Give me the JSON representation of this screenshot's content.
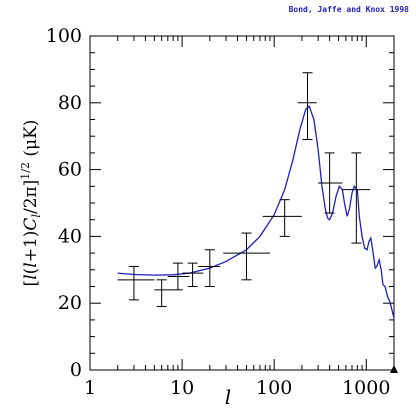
{
  "credit": "Bond, Jaffe and Knox 1998",
  "chart_data": {
    "type": "scatter",
    "xscale": "log",
    "xlim": [
      1,
      2000
    ],
    "ylim": [
      0,
      100
    ],
    "xlabel": "l",
    "ylabel": "[l(l+1)C_l/2π]^{1/2}  (μK)",
    "xticks": [
      1,
      10,
      100,
      1000
    ],
    "xtick_labels": [
      "1",
      "10",
      "100",
      "1000"
    ],
    "yticks": [
      0,
      20,
      40,
      60,
      80,
      100
    ],
    "ytick_labels": [
      "0",
      "20",
      "40",
      "60",
      "80",
      "100"
    ],
    "grid": false,
    "points": [
      {
        "x": 3,
        "y": 27,
        "xlo": 2,
        "xhi": 5,
        "ylo": 21,
        "yhi": 31
      },
      {
        "x": 6,
        "y": 24,
        "xlo": 5,
        "xhi": 8,
        "ylo": 19,
        "yhi": 27
      },
      {
        "x": 9,
        "y": 28,
        "xlo": 7,
        "xhi": 12,
        "ylo": 24,
        "yhi": 32
      },
      {
        "x": 13,
        "y": 29,
        "xlo": 10,
        "xhi": 17,
        "ylo": 25,
        "yhi": 32
      },
      {
        "x": 20,
        "y": 31,
        "xlo": 15,
        "xhi": 26,
        "ylo": 25,
        "yhi": 36
      },
      {
        "x": 50,
        "y": 35,
        "xlo": 28,
        "xhi": 90,
        "ylo": 27,
        "yhi": 41
      },
      {
        "x": 130,
        "y": 46,
        "xlo": 75,
        "xhi": 200,
        "ylo": 40,
        "yhi": 51
      },
      {
        "x": 230,
        "y": 80,
        "xlo": 180,
        "xhi": 290,
        "ylo": 69,
        "yhi": 89
      },
      {
        "x": 400,
        "y": 56,
        "xlo": 300,
        "xhi": 550,
        "ylo": 47,
        "yhi": 65
      },
      {
        "x": 780,
        "y": 54,
        "xlo": 550,
        "xhi": 1100,
        "ylo": 38,
        "yhi": 65
      }
    ],
    "series": [
      {
        "type": "line",
        "color": "#1f1fbf",
        "x": [
          2,
          3,
          5,
          8,
          12,
          20,
          30,
          50,
          70,
          100,
          130,
          160,
          190,
          220,
          240,
          270,
          300,
          330,
          360,
          380,
          400,
          430,
          470,
          510,
          550,
          580,
          620,
          660,
          700,
          740,
          800,
          840,
          900,
          960,
          1020,
          1070,
          1120,
          1180,
          1250,
          1300,
          1380,
          1450,
          1520,
          1600,
          1700,
          1800,
          1900,
          2000
        ],
        "y": [
          29,
          28.6,
          28.4,
          28.5,
          29,
          30.5,
          32.5,
          36,
          40,
          46.5,
          54,
          63,
          72,
          78,
          79,
          75,
          66,
          55,
          48,
          45.5,
          45,
          47,
          52,
          55,
          54,
          50,
          46,
          48.5,
          53,
          55,
          54,
          46,
          40,
          36.5,
          36,
          38.5,
          39.5,
          35.5,
          30.5,
          31,
          33,
          30,
          25.5,
          25,
          22,
          20.5,
          18,
          15.5
        ]
      }
    ]
  }
}
